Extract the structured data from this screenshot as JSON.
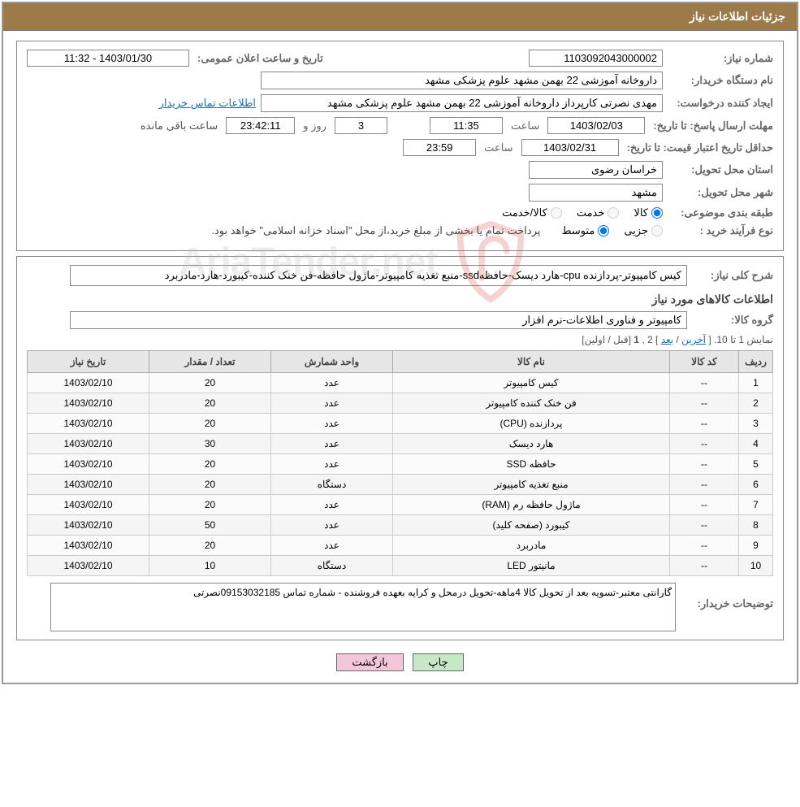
{
  "header": {
    "title": "جزئیات اطلاعات نیاز"
  },
  "fields": {
    "need_no_label": "شماره نیاز:",
    "need_no": "1103092043000002",
    "announce_label": "تاریخ و ساعت اعلان عمومی:",
    "announce_value": "1403/01/30 - 11:32",
    "buyer_org_label": "نام دستگاه خریدار:",
    "buyer_org": "داروخانه آموزشی 22 بهمن مشهد   علوم پزشکی مشهد",
    "requester_label": "ایجاد کننده درخواست:",
    "requester": "مهدی نصرتی کارپرداز داروخانه آموزشی 22 بهمن مشهد   علوم پزشکی مشهد",
    "buyer_contact_link": "اطلاعات تماس خریدار",
    "deadline_label": "مهلت ارسال پاسخ: تا تاریخ:",
    "deadline_date": "1403/02/03",
    "time_label": "ساعت",
    "deadline_time": "11:35",
    "days_label": "روز و",
    "days_value": "3",
    "countdown": "23:42:11",
    "remaining_suffix": "ساعت باقی مانده",
    "price_validity_label": "حداقل تاریخ اعتبار قیمت: تا تاریخ:",
    "price_validity_date": "1403/02/31",
    "price_validity_time": "23:59",
    "province_label": "استان محل تحویل:",
    "province": "خراسان رضوی",
    "city_label": "شهر محل تحویل:",
    "city": "مشهد",
    "category_label": "طبقه بندی موضوعی:",
    "category_goods": "کالا",
    "category_service": "خدمت",
    "category_both": "کالا/خدمت",
    "process_label": "نوع فرآیند خرید :",
    "process_partial": "جزیی",
    "process_medium": "متوسط",
    "process_note": "پرداخت تمام یا بخشی از مبلغ خرید،از محل \"اسناد خزانه اسلامی\" خواهد بود.",
    "overview_label": "شرح کلی نیاز:",
    "overview_text": "کیس کامپیوتر-پردازنده cpu-هارد دیسک-حافظهssd-منبع تغذیه کامپیوتر-ماژول حافظه-فن خنک کننده-کیبورد-هارد-مادربرد",
    "items_section_title": "اطلاعات کالاهای مورد نیاز",
    "group_label": "گروه کالا:",
    "group_text": "کامپیوتر و فناوری اطلاعات-نرم افزار",
    "pager_prefix": "نمایش 1 تا 10. [",
    "pager_last": "آخرین",
    "pager_sep": " / ",
    "pager_next": "بعد",
    "pager_mid": "] 2 ,",
    "pager_current": "1",
    "pager_suffix": " [قبل / اولین]",
    "notes_label": "توضیحات خریدار:",
    "notes_text": "گارانتی معتبر-تسویه بعد از تحویل کالا 4ماهه-تحویل درمحل و کرایه بعهده فروشنده - شماره تماس 09153032185نصرتی",
    "btn_print": "چاپ",
    "btn_back": "بازگشت"
  },
  "table": {
    "headers": {
      "row": "ردیف",
      "code": "کد کالا",
      "name": "نام کالا",
      "unit": "واحد شمارش",
      "qty": "تعداد / مقدار",
      "date": "تاریخ نیاز"
    },
    "rows": [
      {
        "n": "1",
        "code": "--",
        "name": "کیس کامپیوتر",
        "unit": "عدد",
        "qty": "20",
        "date": "1403/02/10"
      },
      {
        "n": "2",
        "code": "--",
        "name": "فن خنک کننده کامپیوتر",
        "unit": "عدد",
        "qty": "20",
        "date": "1403/02/10"
      },
      {
        "n": "3",
        "code": "--",
        "name": "پردازنده (CPU)",
        "unit": "عدد",
        "qty": "20",
        "date": "1403/02/10"
      },
      {
        "n": "4",
        "code": "--",
        "name": "هارد دیسک",
        "unit": "عدد",
        "qty": "30",
        "date": "1403/02/10"
      },
      {
        "n": "5",
        "code": "--",
        "name": "حافظه SSD",
        "unit": "عدد",
        "qty": "20",
        "date": "1403/02/10"
      },
      {
        "n": "6",
        "code": "--",
        "name": "منبع تغذیه کامپیوتر",
        "unit": "دستگاه",
        "qty": "20",
        "date": "1403/02/10"
      },
      {
        "n": "7",
        "code": "--",
        "name": "ماژول حافظه رم (RAM)",
        "unit": "عدد",
        "qty": "20",
        "date": "1403/02/10"
      },
      {
        "n": "8",
        "code": "--",
        "name": "کیبورد (صفحه کلید)",
        "unit": "عدد",
        "qty": "50",
        "date": "1403/02/10"
      },
      {
        "n": "9",
        "code": "--",
        "name": "مادربرد",
        "unit": "عدد",
        "qty": "20",
        "date": "1403/02/10"
      },
      {
        "n": "10",
        "code": "--",
        "name": "مانیتور LED",
        "unit": "دستگاه",
        "qty": "10",
        "date": "1403/02/10"
      }
    ]
  },
  "watermark": {
    "text": "AriaTender.net"
  },
  "colors": {
    "header_bg": "#9c7a4a",
    "link": "#1a6ebd",
    "btn_print_bg": "#c7e8c7",
    "btn_back_bg": "#f4c6d9"
  }
}
